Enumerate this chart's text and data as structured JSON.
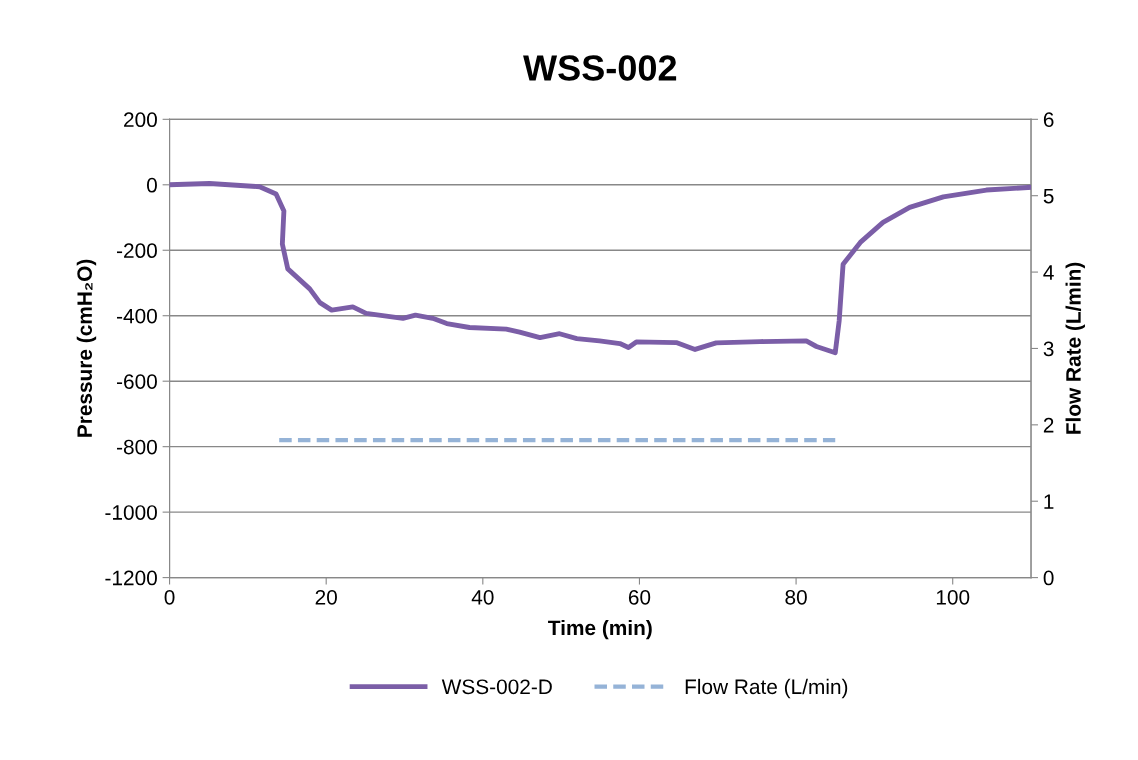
{
  "chart_data": {
    "type": "line",
    "title": "WSS-002",
    "xlabel": "Time (min)",
    "ylabel": "Pressure (cmH₂O)",
    "y2label": "Flow Rate (L/min)",
    "xlim": [
      0,
      110
    ],
    "xticks": [
      0,
      20,
      40,
      60,
      80,
      100
    ],
    "ylim": [
      -1200,
      200
    ],
    "yticks": [
      -1200,
      -1000,
      -800,
      -600,
      -400,
      -200,
      0,
      200
    ],
    "y2lim": [
      0,
      6
    ],
    "y2ticks": [
      0,
      1,
      2,
      3,
      4,
      5,
      6
    ],
    "grid": "y",
    "legend": "bottom",
    "marker": "none",
    "series": [
      {
        "name": "WSS-002-D",
        "color": "#7b5ea7",
        "line_style": "solid",
        "x": [
          0,
          5.1,
          11.5,
          13.6,
          14.6,
          14.4,
          15.1,
          17.9,
          19.2,
          20.7,
          23.4,
          25.1,
          29.8,
          31.4,
          33.6,
          35.4,
          38.3,
          43.0,
          44.7,
          47.3,
          49.8,
          52.0,
          54.9,
          57.5,
          58.6,
          59.6,
          64.7,
          67.1,
          69.8,
          75.4,
          81.3,
          82.6,
          85.0,
          85.5,
          86.0,
          88.2,
          91.1,
          94.5,
          98.8,
          104.3,
          109.9
        ],
        "values": [
          0,
          4,
          -6,
          -28,
          -80,
          -181,
          -257,
          -318,
          -360,
          -383,
          -373,
          -393,
          -408,
          -398,
          -408,
          -424,
          -436,
          -441,
          -450,
          -467,
          -455,
          -470,
          -477,
          -485,
          -497,
          -480,
          -482,
          -503,
          -483,
          -479,
          -477,
          -494,
          -513,
          -416,
          -243,
          -176,
          -115,
          -69,
          -37,
          -16,
          -8
        ]
      },
      {
        "name": "Flow Rate (L/min)",
        "color": "#95b3d7",
        "line_style": "dashed",
        "axis": "y2",
        "x": [
          14,
          85
        ],
        "values": [
          1.8,
          1.8
        ]
      }
    ]
  }
}
